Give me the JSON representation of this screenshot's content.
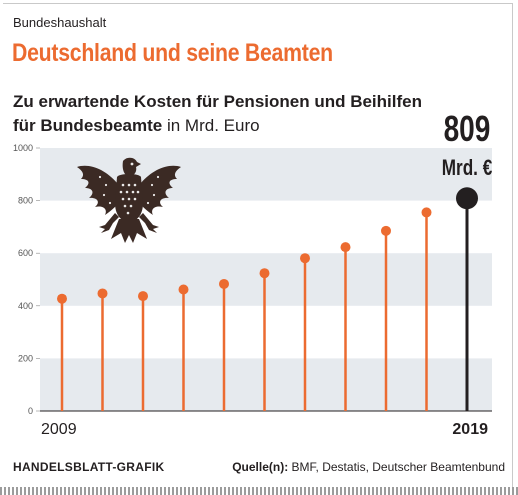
{
  "header": {
    "kicker": "Bundeshaushalt",
    "headline": "Deutschland und seine Beamten",
    "subtitle_bold_1": "Zu erwartende Kosten für Pensionen und Beihilfen",
    "subtitle_bold_2": "für Bundesbeamte",
    "subtitle_rest": " in Mrd. Euro"
  },
  "footer": {
    "credit": "HANDELSBLATT-GRAFIK",
    "source_label": "Quelle(n):",
    "source_text": " BMF, Destatis, Deutscher Beamtenbund"
  },
  "colors": {
    "accent": "#ec6b30",
    "dark": "#231f20",
    "band": "#e6eaee"
  },
  "icons": {
    "emblem": "federal-eagle-icon"
  },
  "chart_data": {
    "type": "lollipop",
    "title": "Zu erwartende Kosten für Pensionen und Beihilfen für Bundesbeamte in Mrd. Euro",
    "y_ticks": [
      "1000",
      "800",
      "600",
      "400",
      "200",
      "0"
    ],
    "ylim": [
      0,
      1000
    ],
    "x_labels": {
      "start": "2009",
      "end": "2019"
    },
    "x": [
      2009,
      2010,
      2011,
      2012,
      2013,
      2014,
      2015,
      2016,
      2017,
      2018,
      2019
    ],
    "values": [
      427,
      447,
      437,
      462,
      483,
      524,
      581,
      623,
      685,
      755,
      809
    ],
    "highlight": {
      "value_label": "809",
      "unit_label": "Mrd. €"
    }
  }
}
